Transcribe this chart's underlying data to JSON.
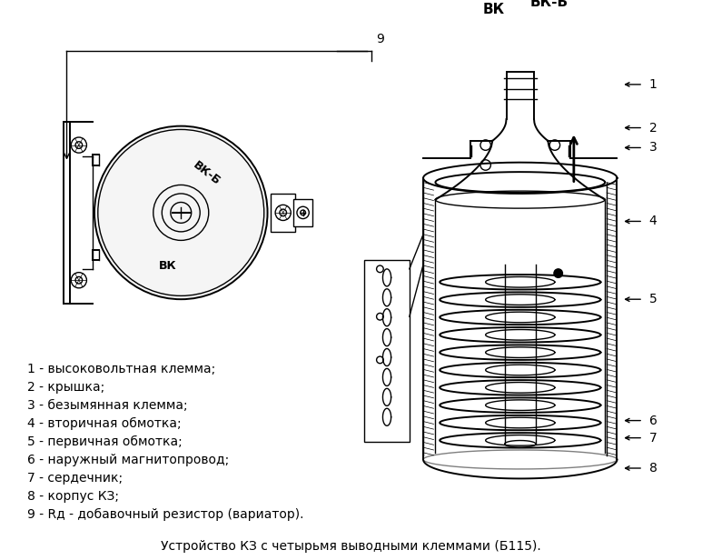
{
  "title": "Устройство КЗ с четырьмя выводными клеммами (Б115).",
  "bg_color": "#ffffff",
  "legend_lines": [
    "1 - высоковольтная клемма;",
    "2 - крышка;",
    "3 - безымянная клемма;",
    "4 - вторичная обмотка;",
    "5 - первичная обмотка;",
    "6 - наружный магнитопровод;",
    "7 - сердечник;",
    "8 - корпус КЗ;",
    "9 - Rд - добавочный резистор (вариатор)."
  ],
  "font_size_legend": 10,
  "font_size_title": 10
}
